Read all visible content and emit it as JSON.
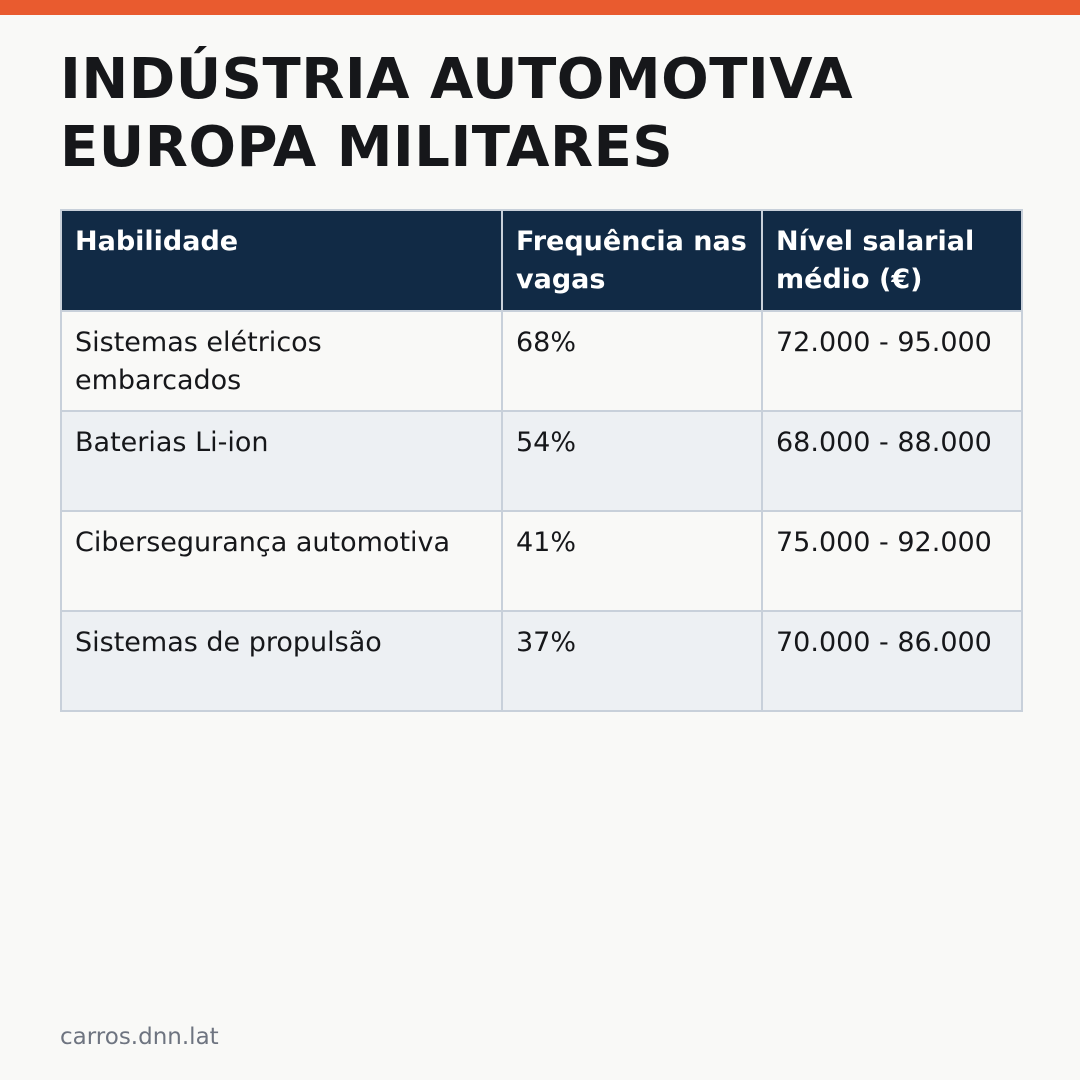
{
  "title": {
    "line1": "INDÚSTRIA AUTOMOTIVA",
    "line2": "EUROPA MILITARES"
  },
  "table": {
    "headers": [
      "Habilidade",
      "Frequência nas vagas",
      "Nível salarial médio (€)"
    ],
    "rows": [
      [
        "Sistemas elétricos embarcados",
        "68%",
        "72.000 - 95.000"
      ],
      [
        "Baterias Li-ion",
        "54%",
        "68.000 - 88.000"
      ],
      [
        "Cibersegurança automotiva",
        "41%",
        "75.000 - 92.000"
      ],
      [
        "Sistemas de propulsão",
        "37%",
        "70.000 - 86.000"
      ]
    ]
  },
  "footer": {
    "source": "carros.dnn.lat"
  },
  "colors": {
    "accent_bar": "#e95b2f",
    "header_bg": "#112a45",
    "header_text": "#ffffff",
    "row_alt_bg": "#edf0f3",
    "page_bg": "#f9f9f7"
  }
}
